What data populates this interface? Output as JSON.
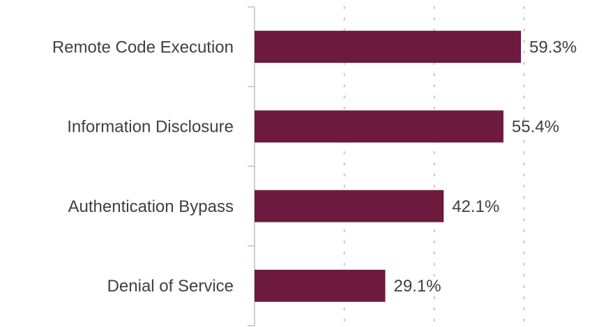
{
  "chart_data": {
    "type": "bar",
    "orientation": "horizontal",
    "categories": [
      "Remote Code Execution",
      "Information Disclosure",
      "Authentication Bypass",
      "Denial of Service"
    ],
    "values": [
      59.3,
      55.4,
      42.1,
      29.1
    ],
    "value_labels": [
      "59.3%",
      "55.4%",
      "42.1%",
      "29.1%"
    ],
    "color": "#6d1a3e",
    "xlim": [
      0,
      70
    ],
    "xticks": [
      0,
      20,
      40,
      60
    ],
    "grid": true
  }
}
